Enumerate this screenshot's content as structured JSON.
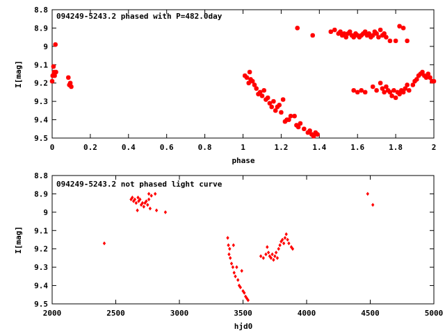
{
  "chart_data": [
    {
      "type": "scatter",
      "title": "094249-5243.2 phased with P=482.0day",
      "xlabel": "phase",
      "ylabel": "I[mag]",
      "xlim": [
        0,
        2
      ],
      "ylim": [
        8.8,
        9.5
      ],
      "y_inverted": true,
      "grid": false,
      "xticks": [
        "0",
        "0.2",
        "0.4",
        "0.6",
        "0.8",
        "1",
        "1.2",
        "1.4",
        "1.6",
        "1.8",
        "2"
      ],
      "yticks": [
        "8.8",
        "8.9",
        "9",
        "9.1",
        "9.2",
        "9.3",
        "9.4",
        "9.5"
      ],
      "marker_color": "#ff0000",
      "marker": "filled-square-cross",
      "series": [
        {
          "points": [
            [
              0.0,
              9.19
            ],
            [
              0.003,
              9.16
            ],
            [
              0.007,
              9.11
            ],
            [
              0.01,
              9.14
            ],
            [
              0.013,
              9.16
            ],
            [
              0.017,
              8.99
            ],
            [
              0.02,
              9.14
            ],
            [
              0.085,
              9.17
            ],
            [
              0.09,
              9.21
            ],
            [
              0.095,
              9.2
            ],
            [
              0.1,
              9.22
            ],
            [
              1.01,
              9.16
            ],
            [
              1.02,
              9.17
            ],
            [
              1.03,
              9.2
            ],
            [
              1.035,
              9.14
            ],
            [
              1.04,
              9.18
            ],
            [
              1.05,
              9.19
            ],
            [
              1.06,
              9.21
            ],
            [
              1.07,
              9.23
            ],
            [
              1.08,
              9.26
            ],
            [
              1.09,
              9.25
            ],
            [
              1.1,
              9.27
            ],
            [
              1.11,
              9.24
            ],
            [
              1.12,
              9.29
            ],
            [
              1.13,
              9.28
            ],
            [
              1.14,
              9.31
            ],
            [
              1.15,
              9.33
            ],
            [
              1.16,
              9.3
            ],
            [
              1.17,
              9.35
            ],
            [
              1.18,
              9.33
            ],
            [
              1.19,
              9.32
            ],
            [
              1.2,
              9.36
            ],
            [
              1.21,
              9.29
            ],
            [
              1.22,
              9.41
            ],
            [
              1.23,
              9.4
            ],
            [
              1.24,
              9.4
            ],
            [
              1.25,
              9.38
            ],
            [
              1.27,
              9.38
            ],
            [
              1.28,
              9.43
            ],
            [
              1.29,
              9.44
            ],
            [
              1.3,
              9.42
            ],
            [
              1.32,
              9.45
            ],
            [
              1.34,
              9.47
            ],
            [
              1.35,
              9.46
            ],
            [
              1.36,
              9.48
            ],
            [
              1.37,
              9.49
            ],
            [
              1.38,
              9.47
            ],
            [
              1.39,
              9.48
            ],
            [
              1.285,
              8.9
            ],
            [
              1.365,
              8.94
            ],
            [
              1.46,
              8.92
            ],
            [
              1.48,
              8.91
            ],
            [
              1.5,
              8.93
            ],
            [
              1.51,
              8.92
            ],
            [
              1.52,
              8.94
            ],
            [
              1.53,
              8.93
            ],
            [
              1.54,
              8.95
            ],
            [
              1.55,
              8.93
            ],
            [
              1.56,
              8.92
            ],
            [
              1.57,
              8.94
            ],
            [
              1.58,
              8.95
            ],
            [
              1.59,
              8.93
            ],
            [
              1.6,
              8.94
            ],
            [
              1.61,
              8.95
            ],
            [
              1.62,
              8.94
            ],
            [
              1.63,
              8.93
            ],
            [
              1.64,
              8.92
            ],
            [
              1.65,
              8.94
            ],
            [
              1.66,
              8.93
            ],
            [
              1.67,
              8.95
            ],
            [
              1.68,
              8.94
            ],
            [
              1.69,
              8.92
            ],
            [
              1.7,
              8.93
            ],
            [
              1.71,
              8.95
            ],
            [
              1.72,
              8.91
            ],
            [
              1.73,
              8.94
            ],
            [
              1.74,
              8.93
            ],
            [
              1.75,
              8.95
            ],
            [
              1.77,
              8.97
            ],
            [
              1.8,
              8.97
            ],
            [
              1.82,
              8.89
            ],
            [
              1.84,
              8.9
            ],
            [
              1.86,
              8.97
            ],
            [
              1.58,
              9.24
            ],
            [
              1.6,
              9.25
            ],
            [
              1.62,
              9.24
            ],
            [
              1.64,
              9.25
            ],
            [
              1.68,
              9.22
            ],
            [
              1.7,
              9.24
            ],
            [
              1.72,
              9.2
            ],
            [
              1.73,
              9.23
            ],
            [
              1.74,
              9.25
            ],
            [
              1.75,
              9.22
            ],
            [
              1.76,
              9.24
            ],
            [
              1.77,
              9.25
            ],
            [
              1.78,
              9.27
            ],
            [
              1.79,
              9.24
            ],
            [
              1.8,
              9.28
            ],
            [
              1.81,
              9.25
            ],
            [
              1.82,
              9.26
            ],
            [
              1.83,
              9.24
            ],
            [
              1.84,
              9.25
            ],
            [
              1.85,
              9.23
            ],
            [
              1.86,
              9.21
            ],
            [
              1.87,
              9.24
            ],
            [
              1.89,
              9.21
            ],
            [
              1.9,
              9.19
            ],
            [
              1.91,
              9.18
            ],
            [
              1.92,
              9.16
            ],
            [
              1.93,
              9.15
            ],
            [
              1.94,
              9.14
            ],
            [
              1.95,
              9.16
            ],
            [
              1.96,
              9.17
            ],
            [
              1.97,
              9.15
            ],
            [
              1.98,
              9.17
            ],
            [
              1.99,
              9.19
            ],
            [
              2.0,
              9.19
            ]
          ]
        }
      ]
    },
    {
      "type": "scatter",
      "title": "094249-5243.2 not phased light curve",
      "xlabel": "hjd0",
      "ylabel": "I[mag]",
      "xlim": [
        2000,
        5000
      ],
      "ylim": [
        8.8,
        9.5
      ],
      "y_inverted": true,
      "grid": false,
      "xticks": [
        "2000",
        "2500",
        "3000",
        "3500",
        "4000",
        "4500",
        "5000"
      ],
      "yticks": [
        "8.8",
        "8.9",
        "9",
        "9.1",
        "9.2",
        "9.3",
        "9.4",
        "9.5"
      ],
      "marker_color": "#ff0000",
      "marker": "filled-diamond",
      "series": [
        {
          "points": [
            [
              2410,
              9.17
            ],
            [
              2620,
              8.93
            ],
            [
              2630,
              8.92
            ],
            [
              2640,
              8.94
            ],
            [
              2650,
              8.93
            ],
            [
              2660,
              8.95
            ],
            [
              2670,
              8.99
            ],
            [
              2675,
              8.92
            ],
            [
              2680,
              8.94
            ],
            [
              2690,
              8.93
            ],
            [
              2700,
              8.96
            ],
            [
              2710,
              8.95
            ],
            [
              2720,
              8.97
            ],
            [
              2730,
              8.95
            ],
            [
              2740,
              8.94
            ],
            [
              2750,
              8.96
            ],
            [
              2760,
              8.93
            ],
            [
              2770,
              8.98
            ],
            [
              2780,
              8.91
            ],
            [
              2760,
              8.9
            ],
            [
              2810,
              8.9
            ],
            [
              2820,
              8.99
            ],
            [
              2890,
              9.0
            ],
            [
              3380,
              9.14
            ],
            [
              3385,
              9.18
            ],
            [
              3390,
              9.23
            ],
            [
              3395,
              9.2
            ],
            [
              3400,
              9.25
            ],
            [
              3410,
              9.28
            ],
            [
              3420,
              9.3
            ],
            [
              3425,
              9.18
            ],
            [
              3430,
              9.33
            ],
            [
              3440,
              9.35
            ],
            [
              3450,
              9.3
            ],
            [
              3460,
              9.37
            ],
            [
              3470,
              9.4
            ],
            [
              3480,
              9.41
            ],
            [
              3490,
              9.32
            ],
            [
              3500,
              9.43
            ],
            [
              3510,
              9.44
            ],
            [
              3520,
              9.46
            ],
            [
              3530,
              9.47
            ],
            [
              3540,
              9.48
            ],
            [
              3640,
              9.24
            ],
            [
              3660,
              9.25
            ],
            [
              3680,
              9.23
            ],
            [
              3690,
              9.19
            ],
            [
              3700,
              9.22
            ],
            [
              3710,
              9.24
            ],
            [
              3720,
              9.25
            ],
            [
              3730,
              9.23
            ],
            [
              3740,
              9.26
            ],
            [
              3750,
              9.24
            ],
            [
              3760,
              9.22
            ],
            [
              3770,
              9.25
            ],
            [
              3780,
              9.2
            ],
            [
              3790,
              9.18
            ],
            [
              3800,
              9.16
            ],
            [
              3810,
              9.15
            ],
            [
              3820,
              9.17
            ],
            [
              3830,
              9.14
            ],
            [
              3840,
              9.12
            ],
            [
              3850,
              9.15
            ],
            [
              3860,
              9.17
            ],
            [
              3880,
              9.19
            ],
            [
              3890,
              9.2
            ],
            [
              4480,
              8.9
            ],
            [
              4520,
              8.96
            ]
          ]
        }
      ]
    }
  ]
}
